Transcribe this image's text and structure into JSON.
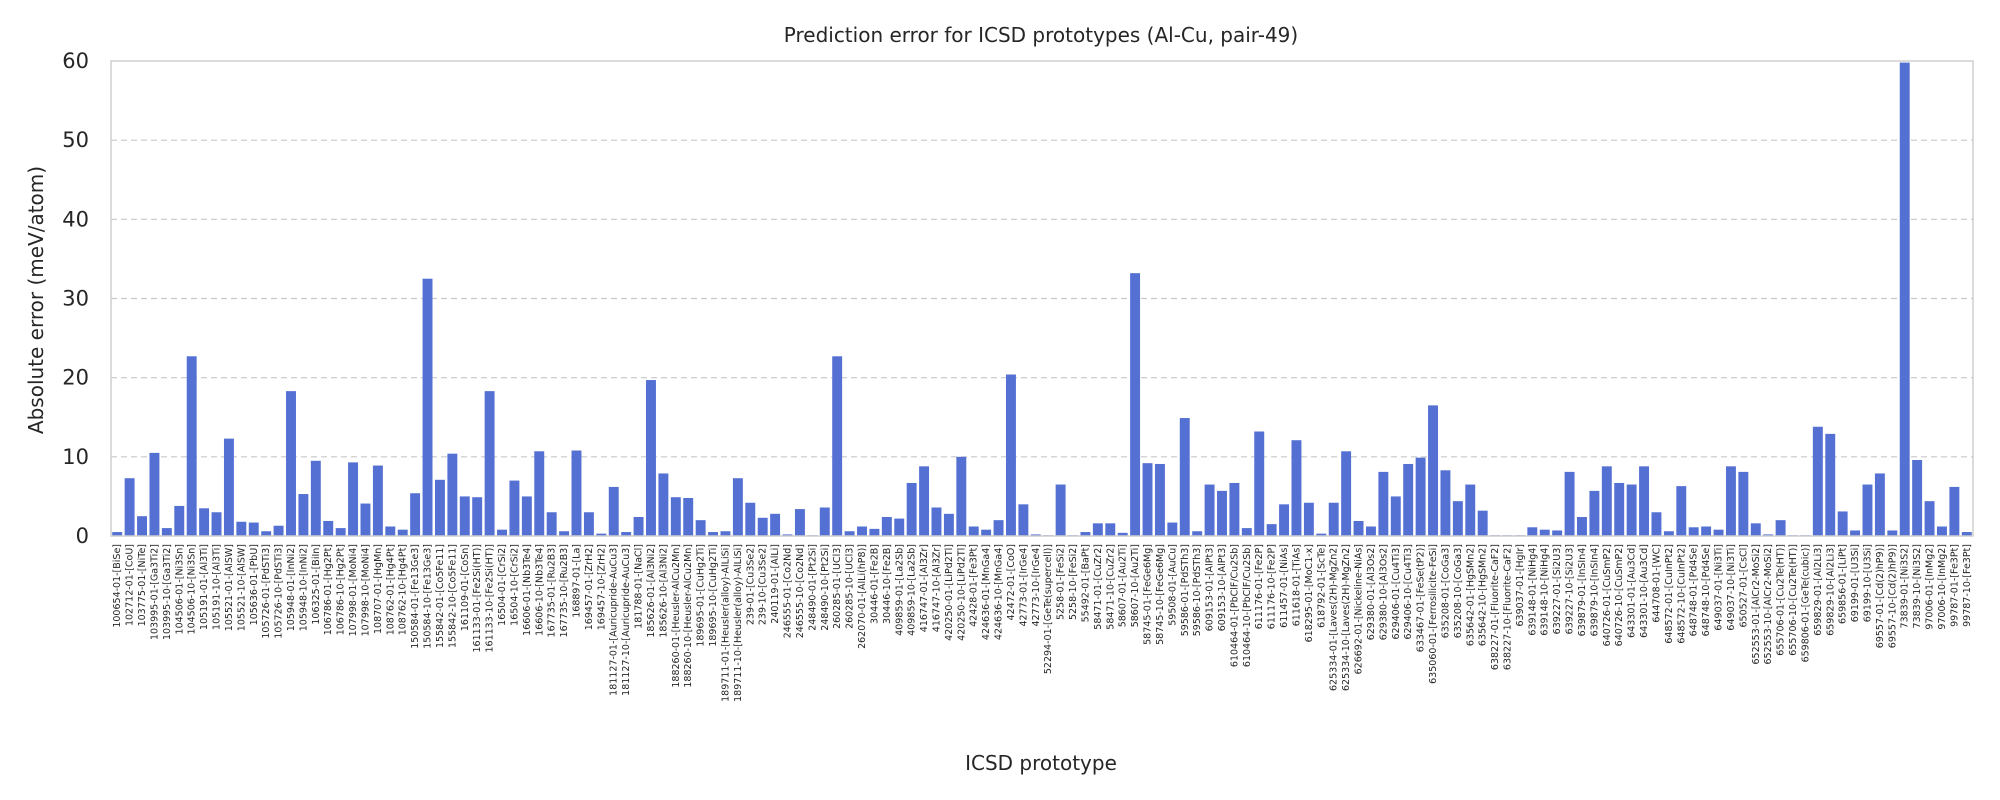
{
  "chart_data": {
    "type": "bar",
    "title": "Prediction error for ICSD prototypes (Al-Cu, pair-49)",
    "xlabel": "ICSD prototype",
    "ylabel": "Absolute error (meV/atom)",
    "ylim": [
      0,
      60
    ],
    "yticks": [
      0,
      10,
      20,
      30,
      40,
      50,
      60
    ],
    "grid": "y-dashed",
    "color": "#5470d3",
    "categories": [
      "100654-01-[BiSe]",
      "102712-01-[CoU]",
      "103775-01-[NiTe]",
      "103995-01-[Ga3Ti2]",
      "103995-10-[Ga3Ti2]",
      "104506-01-[Ni3Sn]",
      "104506-10-[Ni3Sn]",
      "105191-01-[Al3Ti]",
      "105191-10-[Al3Ti]",
      "105521-01-[AlSW]",
      "105521-10-[AlSW]",
      "105636-01-[PbU]",
      "105726-01-[PdSTi3]",
      "105726-10-[PdSTi3]",
      "105948-01-[InNi2]",
      "105948-10-[InNi2]",
      "106325-01-[BiIn]",
      "106786-01-[Hg2Pt]",
      "106786-10-[Hg2Pt]",
      "107998-01-[MoNi4]",
      "107998-10-[MoNi4]",
      "108707-01-[HgMn]",
      "108762-01-[Hg4Pt]",
      "108762-10-[Hg4Pt]",
      "150584-01-[Fe13Ge3]",
      "150584-10-[Fe13Ge3]",
      "155842-01-[Co5Fe11]",
      "155842-10-[Co5Fe11]",
      "161109-01-[CoSn]",
      "161133-01-[Fe2Si(HT)]",
      "161133-10-[Fe2Si(HT)]",
      "16504-01-[CrSi2]",
      "16504-10-[CrSi2]",
      "16606-01-[Nb3Te4]",
      "16606-10-[Nb3Te4]",
      "167735-01-[Ru2B3]",
      "167735-10-[Ru2B3]",
      "168897-01-[La]",
      "169457-01-[ZrH2]",
      "169457-10-[ZrH2]",
      "181127-01-[Auricupride-AuCu3]",
      "181127-10-[Auricupride-AuCu3]",
      "181788-01-[NaCl]",
      "185626-01-[Al3Ni2]",
      "185626-10-[Al3Ni2]",
      "188260-01-[Heusler-AlCu2Mn]",
      "188260-10-[Heusler-AlCu2Mn]",
      "189695-01-[CuHg2Ti]",
      "189695-10-[CuHg2Ti]",
      "189711-01-[Heusler(alloy)-AlLiSi]",
      "189711-10-[Heusler(alloy)-AlLiSi]",
      "239-01-[Cu3Se2]",
      "239-10-[Cu3Se2]",
      "240119-01-[AlLi]",
      "246555-01-[Co2Nd]",
      "246555-10-[Co2Nd]",
      "248490-01-[Pt2Si]",
      "248490-10-[Pt2Si]",
      "260285-01-[UCl3]",
      "260285-10-[UCl3]",
      "262070-01-[AlLi(hP8)]",
      "30446-01-[Fe2B]",
      "30446-10-[Fe2B]",
      "409859-01-[La2Sb]",
      "409859-10-[La2Sb]",
      "416747-01-[Al3Zr]",
      "416747-10-[Al3Zr]",
      "420250-01-[LiPd2Tl]",
      "420250-10-[LiPd2Tl]",
      "42428-01-[Fe3Pt]",
      "424636-01-[MnGa4]",
      "424636-10-[MnGa4]",
      "42472-01-[CoO]",
      "42773-01-[IrGe4]",
      "42773-10-[IrGe4]",
      "52294-01-[GeTe(supercell)]",
      "5258-01-[FeSi2]",
      "5258-10-[FeSi2]",
      "55492-01-[BaPt]",
      "58471-01-[CuZr2]",
      "58471-10-[CuZr2]",
      "58607-01-[Au2Ti]",
      "58607-10-[Au2Ti]",
      "58745-01-[FeGe6Mg]",
      "58745-10-[FeGe6Mg]",
      "59508-01-[AuCu]",
      "59586-01-[PdSTh3]",
      "59586-10-[PdSTh3]",
      "609153-01-[AlPt3]",
      "609153-10-[AlPt3]",
      "610464-01-[PbClF/Cu2Sb]",
      "610464-10-[PbClF/Cu2Sb]",
      "611176-01-[Fe2P]",
      "611176-10-[Fe2P]",
      "611457-01-[NiAs]",
      "611618-01-[TiAs]",
      "618295-01-[MoC1-x]",
      "618792-01-[ScTe]",
      "625334-01-[Laves(2H)-MgZn2]",
      "625334-10-[Laves(2H)-MgZn2]",
      "626692-01-[Nickeline-NiAs]",
      "629380-01-[Al3Os2]",
      "629380-10-[Al3Os2]",
      "629406-01-[Cu4Ti3]",
      "629406-10-[Cu4Ti3]",
      "633467-01-[FeSe(tP2)]",
      "635060-01-[Ferrosilicite-FeSi]",
      "635208-01-[CoGa3]",
      "635208-10-[CoGa3]",
      "635642-01-[HgSMn2]",
      "635642-10-[HgSMn2]",
      "638227-01-[Fluorite-CaF2]",
      "638227-10-[Fluorite-CaF2]",
      "639037-01-[HgIr]",
      "639148-01-[NiHg4]",
      "639148-10-[NiHg4]",
      "639227-01-[Si2U3]",
      "639227-10-[Si2U3]",
      "639879-01-[InSIn4]",
      "639879-10-[InSIn4]",
      "640726-01-[CuSmP2]",
      "640726-10-[CuSmP2]",
      "643301-01-[Au3Cd]",
      "643301-10-[Au3Cd]",
      "644708-01-[WC]",
      "648572-01-[CuInPt2]",
      "648572-10-[CuInPt2]",
      "648748-01-[Pd4Se]",
      "648748-10-[Pd4Se]",
      "649037-01-[Ni3Ti]",
      "649037-10-[Ni3Ti]",
      "650527-01-[CsCl]",
      "652553-01-[AlCr2-MoSi2]",
      "652553-10-[AlCr2-MoSi2]",
      "655706-01-[Cu2Te(HT)]",
      "655706-10-[Cu2Te(HT)]",
      "659806-01-[GeTe(cubic)]",
      "659829-01-[Al2Li3]",
      "659829-10-[Al2Li3]",
      "659856-01-[LiPt]",
      "69199-01-[U3Si]",
      "69199-10-[U3Si]",
      "69557-01-[Cd(2)hP9)]",
      "69557-10-[Cd(2)hP9)]",
      "73839-01-[Ni3S2]",
      "73839-10-[Ni3S2]",
      "97006-01-[InMg2]",
      "97006-10-[InMg2]",
      "99787-01-[Fe3Pt]",
      "99787-10-[Fe3Pt]"
    ],
    "values": [
      0.5,
      7.3,
      2.5,
      10.5,
      1.0,
      3.8,
      22.7,
      3.5,
      3.0,
      12.3,
      1.8,
      1.7,
      0.6,
      1.3,
      18.3,
      5.3,
      9.5,
      1.9,
      1.0,
      9.3,
      4.1,
      8.9,
      1.2,
      0.8,
      5.4,
      32.5,
      7.1,
      10.4,
      5.0,
      4.9,
      18.3,
      0.8,
      7.0,
      5.0,
      10.7,
      3.0,
      0.6,
      10.8,
      3.0,
      0.3,
      6.2,
      0.5,
      2.4,
      19.7,
      7.9,
      4.9,
      4.8,
      2.0,
      0.5,
      0.6,
      7.3,
      4.2,
      2.3,
      2.8,
      0.2,
      3.4,
      0.1,
      3.6,
      22.7,
      0.6,
      1.2,
      0.9,
      2.4,
      2.2,
      6.7,
      8.8,
      3.6,
      2.8,
      10.0,
      1.2,
      0.8,
      2.0,
      20.4,
      4.0,
      0.2,
      0.1,
      6.5,
      0.1,
      0.5,
      1.6,
      1.6,
      0.4,
      33.2,
      9.2,
      9.1,
      1.7,
      14.9,
      0.6,
      6.5,
      5.7,
      6.7,
      1.0,
      13.2,
      1.5,
      4.0,
      12.1,
      4.2,
      0.3,
      4.2,
      10.7,
      1.9,
      1.2,
      8.1,
      5.0,
      9.1,
      9.9,
      16.5,
      8.3,
      4.4,
      6.5,
      3.2,
      0.1,
      0.1,
      0.1,
      1.1,
      0.8,
      0.7,
      8.1,
      2.4,
      5.7,
      8.8,
      6.7,
      6.5,
      8.8,
      3.0,
      0.6,
      6.3,
      1.1,
      1.2,
      0.8,
      8.8,
      8.1,
      1.6,
      0.2,
      2.0,
      0.1,
      0.1,
      13.8,
      12.9,
      3.1,
      0.7,
      6.5,
      7.9,
      0.7,
      59.8,
      9.6,
      4.4,
      1.2,
      6.2,
      0.5
    ]
  }
}
